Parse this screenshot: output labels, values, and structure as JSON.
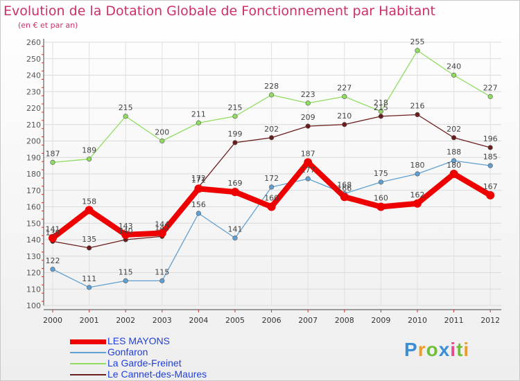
{
  "chart_data": {
    "type": "line",
    "title": "Evolution de la Dotation Globale de Fonctionnement par Habitant",
    "subtitle": "(en € et par an)",
    "categories": [
      "2000",
      "2001",
      "2002",
      "2003",
      "2004",
      "2005",
      "2006",
      "2007",
      "2008",
      "2009",
      "2010",
      "2011",
      "2012"
    ],
    "ylim": [
      100,
      260
    ],
    "yticks": [
      100,
      110,
      120,
      130,
      140,
      150,
      160,
      170,
      180,
      190,
      200,
      210,
      220,
      230,
      240,
      250,
      260
    ],
    "grid": true,
    "legend_position": "bottom-left",
    "series": [
      {
        "name": "LES MAYONS",
        "color": "#ee0000",
        "values": [
          141,
          158,
          143,
          144,
          171,
          169,
          160,
          187,
          166,
          160,
          162,
          180,
          167
        ]
      },
      {
        "name": "Gonfaron",
        "color": "#5f9fd1",
        "values": [
          122,
          111,
          115,
          115,
          156,
          141,
          172,
          177,
          168,
          175,
          180,
          188,
          185
        ]
      },
      {
        "name": "La Garde-Freinet",
        "color": "#8fdc60",
        "values": [
          187,
          189,
          215,
          200,
          211,
          215,
          228,
          223,
          227,
          218,
          255,
          240,
          227
        ]
      },
      {
        "name": "Le Cannet-des-Maures",
        "color": "#6b1c1c",
        "values": [
          139,
          135,
          140,
          142,
          172,
          199,
          202,
          209,
          210,
          215,
          216,
          202,
          196
        ]
      }
    ]
  },
  "logo_text": "Proxiti"
}
